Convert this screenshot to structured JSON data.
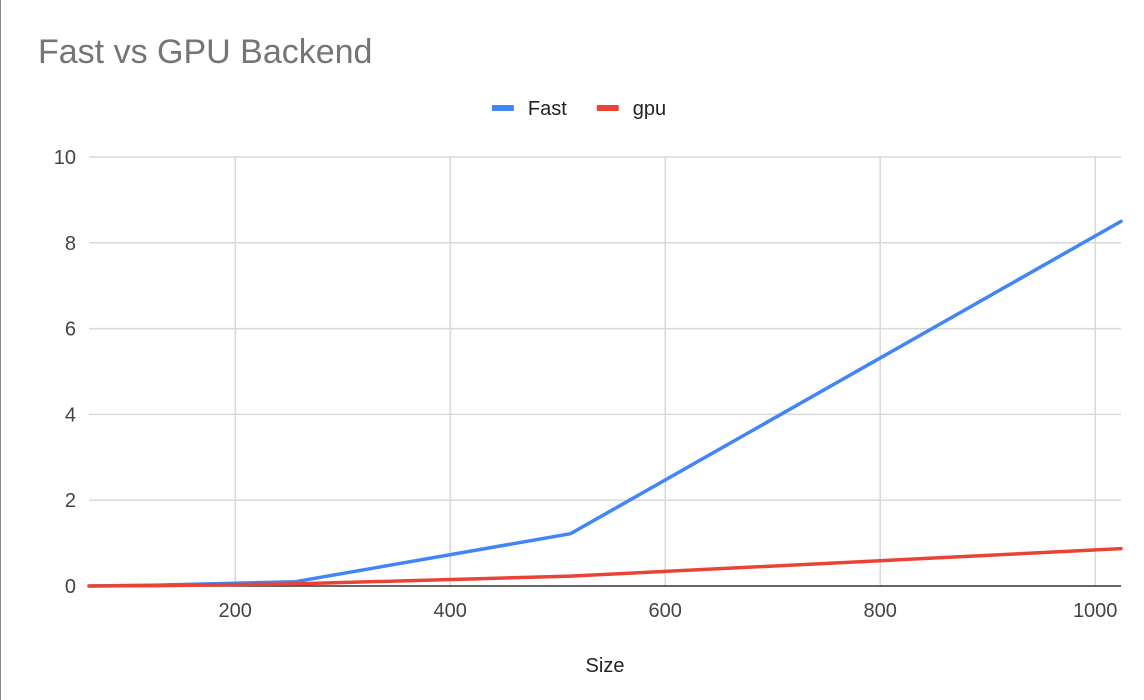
{
  "chart_data": {
    "type": "line",
    "title": "Fast vs GPU Backend",
    "xlabel": "Size",
    "ylabel": "",
    "xlim": [
      64,
      1024
    ],
    "ylim": [
      0,
      10
    ],
    "xticks": [
      200,
      400,
      600,
      800,
      1000
    ],
    "yticks": [
      0,
      2,
      4,
      6,
      8,
      10
    ],
    "grid": true,
    "legend_position": "top",
    "series": [
      {
        "name": "Fast",
        "color": "#4285f4",
        "x": [
          64,
          128,
          256,
          512,
          1024
        ],
        "y": [
          0.0,
          0.02,
          0.1,
          1.22,
          8.5
        ]
      },
      {
        "name": "gpu",
        "color": "#ea4335",
        "x": [
          64,
          128,
          256,
          512,
          1024
        ],
        "y": [
          0.0,
          0.01,
          0.05,
          0.23,
          0.87
        ]
      }
    ]
  }
}
